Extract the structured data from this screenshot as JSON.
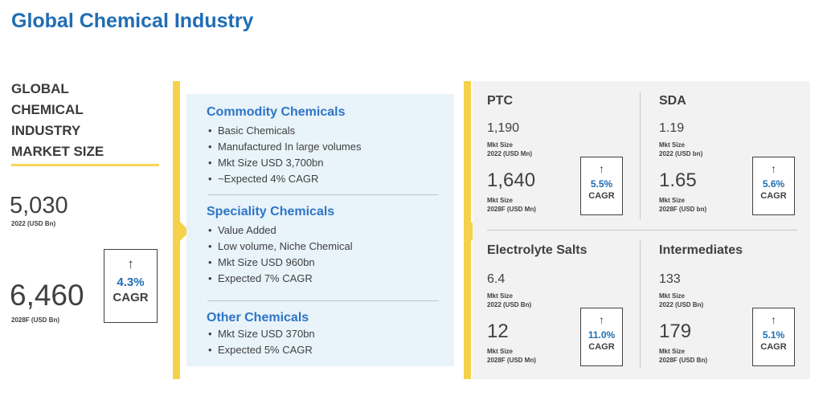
{
  "title": "Global Chemical Industry",
  "market": {
    "heading": [
      "GLOBAL",
      "CHEMICAL",
      "INDUSTRY",
      "MARKET SIZE"
    ],
    "value_2022": "5,030",
    "caption_2022": "2022 (USD Bn)",
    "value_2028": "6,460",
    "caption_2028": "2028F (USD Bn)",
    "cagr_pct": "4.3%",
    "cagr_label": "CAGR"
  },
  "categories": [
    {
      "title": "Commodity Chemicals",
      "bullets": [
        "Basic Chemicals",
        "Manufactured In large volumes",
        "Mkt Size USD 3,700bn",
        "~Expected 4% CAGR"
      ]
    },
    {
      "title": "Speciality Chemicals",
      "bullets": [
        "Value Added",
        "Low volume, Niche Chemical",
        "Mkt Size USD 960bn",
        "Expected 7% CAGR"
      ]
    },
    {
      "title": "Other Chemicals",
      "bullets": [
        "Mkt Size USD 370bn",
        "Expected 5% CAGR"
      ]
    }
  ],
  "segments": [
    {
      "name": "PTC",
      "value_2022": "1,190",
      "caption_2022": [
        "Mkt Size",
        "2022 (USD Mn)"
      ],
      "value_2028": "1,640",
      "caption_2028": [
        "Mkt Size",
        "2028F (USD Mn)"
      ],
      "cagr_pct": "5.5%",
      "cagr_label": "CAGR"
    },
    {
      "name": "SDA",
      "value_2022": "1.19",
      "caption_2022": [
        "Mkt Size",
        "2022 (USD bn)"
      ],
      "value_2028": "1.65",
      "caption_2028": [
        "Mkt Size",
        "2028F (USD bn)"
      ],
      "cagr_pct": "5.6%",
      "cagr_label": "CAGR"
    },
    {
      "name": "Electrolyte Salts",
      "value_2022": "6.4",
      "caption_2022": [
        "Mkt Size",
        "2022 (USD Bn)"
      ],
      "value_2028": "12",
      "caption_2028": [
        "Mkt Size",
        "2028F (USD Mn)"
      ],
      "cagr_pct": "11.0%",
      "cagr_label": "CAGR"
    },
    {
      "name": "Intermediates",
      "value_2022": "133",
      "caption_2022": [
        "Mkt Size",
        "2022 (USD Bn)"
      ],
      "value_2028": "179",
      "caption_2028": [
        "Mkt Size",
        "2028F (USD Bn)"
      ],
      "cagr_pct": "5.1%",
      "cagr_label": "CAGR"
    }
  ],
  "icons": {
    "up_arrow": "↑",
    "bullet": "•"
  },
  "colors": {
    "title_blue": "#1f6db5",
    "accent_yellow": "#f5d24b",
    "panel_blue": "#e8f3fa",
    "panel_grey": "#f2f2f2"
  }
}
